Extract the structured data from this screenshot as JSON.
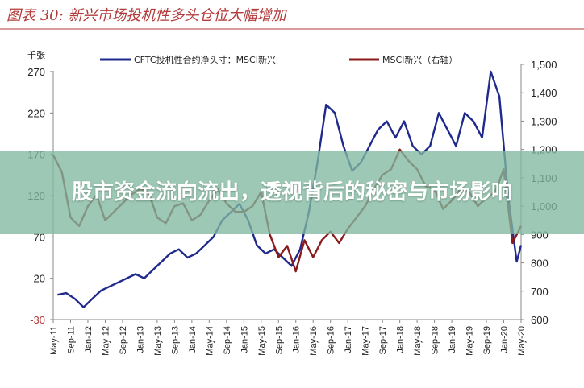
{
  "overlay": {
    "text": "股市资金流向流出，透视背后的秘密与市场影响"
  },
  "chart_data": {
    "type": "line",
    "title": "图表 30: 新兴市场投机性多头仓位大幅增加",
    "left_axis_unit": "千张",
    "left_ylim": [
      -30,
      270
    ],
    "left_ticks": [
      270,
      220,
      170,
      120,
      70,
      20,
      -30
    ],
    "right_ylim": [
      600,
      1500
    ],
    "right_ticks": [
      "1,500",
      "1,400",
      "1,300",
      "1,200",
      "1,100",
      "1,000",
      "900",
      "800",
      "700",
      "600"
    ],
    "right_tick_values": [
      1500,
      1400,
      1300,
      1200,
      1100,
      1000,
      900,
      800,
      700,
      600
    ],
    "x_ticks": [
      "May-11",
      "Sep-11",
      "Jan-12",
      "May-12",
      "Sep-12",
      "Jan-13",
      "May-13",
      "Sep-13",
      "Jan-14",
      "May-14",
      "Sep-14",
      "Jan-15",
      "May-15",
      "Sep-15",
      "Jan-16",
      "May-16",
      "Sep-16",
      "Jan-17",
      "May-17",
      "Sep-17",
      "Jan-18",
      "May-18",
      "Sep-18",
      "Jan-19",
      "May-19",
      "Sep-19",
      "Jan-20",
      "May-20"
    ],
    "colors": {
      "cftc": "#1f2a8c",
      "msci": "#8b1a1a",
      "title": "#b23a3a",
      "neg_tick": "#b23a3a"
    },
    "series": [
      {
        "name": "CFTC投机性合约净头寸：MSCI新兴",
        "axis": "left",
        "x": [
          "2011-06",
          "2011-08",
          "2011-10",
          "2011-12",
          "2012-02",
          "2012-04",
          "2012-06",
          "2012-08",
          "2012-10",
          "2012-12",
          "2013-02",
          "2013-04",
          "2013-06",
          "2013-08",
          "2013-10",
          "2013-12",
          "2014-02",
          "2014-04",
          "2014-06",
          "2014-08",
          "2014-10",
          "2014-12",
          "2015-02",
          "2015-04",
          "2015-06",
          "2015-08",
          "2015-10",
          "2015-12",
          "2016-02",
          "2016-04",
          "2016-06",
          "2016-08",
          "2016-10",
          "2016-12",
          "2017-02",
          "2017-04",
          "2017-06",
          "2017-08",
          "2017-10",
          "2017-12",
          "2018-02",
          "2018-04",
          "2018-06",
          "2018-08",
          "2018-10",
          "2018-12",
          "2019-02",
          "2019-04",
          "2019-06",
          "2019-08",
          "2019-10",
          "2019-12",
          "2020-02",
          "2020-04",
          "2020-05"
        ],
        "values": [
          0,
          2,
          -5,
          -15,
          -5,
          5,
          10,
          15,
          20,
          25,
          20,
          30,
          40,
          50,
          55,
          45,
          50,
          60,
          70,
          90,
          100,
          110,
          90,
          60,
          50,
          55,
          45,
          35,
          55,
          100,
          160,
          230,
          220,
          180,
          150,
          160,
          180,
          200,
          210,
          190,
          210,
          180,
          170,
          180,
          220,
          200,
          180,
          220,
          210,
          190,
          270,
          240,
          120,
          40,
          60
        ]
      },
      {
        "name": "MSCI新兴（右轴）",
        "axis": "right",
        "x": [
          "2011-05",
          "2011-07",
          "2011-09",
          "2011-11",
          "2012-01",
          "2012-03",
          "2012-05",
          "2012-07",
          "2012-09",
          "2012-11",
          "2013-01",
          "2013-03",
          "2013-05",
          "2013-07",
          "2013-09",
          "2013-11",
          "2014-01",
          "2014-03",
          "2014-05",
          "2014-07",
          "2014-09",
          "2014-11",
          "2015-01",
          "2015-03",
          "2015-05",
          "2015-07",
          "2015-09",
          "2015-11",
          "2016-01",
          "2016-03",
          "2016-05",
          "2016-07",
          "2016-09",
          "2016-11",
          "2017-01",
          "2017-03",
          "2017-05",
          "2017-07",
          "2017-09",
          "2017-11",
          "2018-01",
          "2018-03",
          "2018-05",
          "2018-07",
          "2018-09",
          "2018-11",
          "2019-01",
          "2019-03",
          "2019-05",
          "2019-07",
          "2019-09",
          "2019-11",
          "2020-01",
          "2020-03",
          "2020-05"
        ],
        "values": [
          1180,
          1120,
          960,
          930,
          1000,
          1040,
          950,
          980,
          1010,
          1040,
          1060,
          1050,
          960,
          940,
          1000,
          1010,
          950,
          970,
          1020,
          1060,
          1010,
          980,
          980,
          1000,
          1050,
          900,
          820,
          860,
          770,
          880,
          820,
          880,
          910,
          870,
          920,
          960,
          1000,
          1060,
          1110,
          1130,
          1200,
          1160,
          1130,
          1070,
          1060,
          990,
          1020,
          1060,
          1050,
          1000,
          1030,
          1050,
          1130,
          870,
          930
        ]
      }
    ],
    "legend_position": "top",
    "grid": false
  }
}
